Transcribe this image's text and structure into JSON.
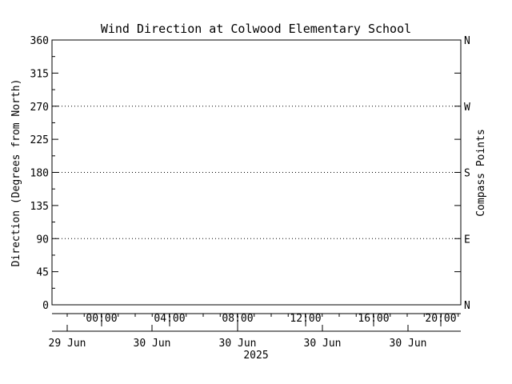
{
  "chart_data": {
    "type": "line",
    "title": "Wind Direction at Colwood Elementary School",
    "ylabel": "Direction (Degrees from North)",
    "ylabel_right": "Compass Points",
    "ylim": [
      0,
      360
    ],
    "yticks": [
      0,
      45,
      90,
      135,
      180,
      225,
      270,
      315,
      360
    ],
    "ytick_labels": [
      "0",
      "45",
      "90",
      "135",
      "180",
      "225",
      "270",
      "315",
      "360"
    ],
    "right_ticks": [
      {
        "value": 0,
        "label": "N"
      },
      {
        "value": 90,
        "label": "E"
      },
      {
        "value": 180,
        "label": "S"
      },
      {
        "value": 270,
        "label": "W"
      },
      {
        "value": 360,
        "label": "N"
      }
    ],
    "reference_lines": [
      90,
      180,
      270
    ],
    "grid": "dotted horizontal at compass points",
    "x_time_ticks": [
      "00:00",
      "04:00",
      "08:00",
      "12:00",
      "16:00",
      "20:00"
    ],
    "x_date_ticks": [
      "29 Jun",
      "30 Jun",
      "30 Jun",
      "30 Jun",
      "30 Jun"
    ],
    "x_year": "2025",
    "series": []
  }
}
